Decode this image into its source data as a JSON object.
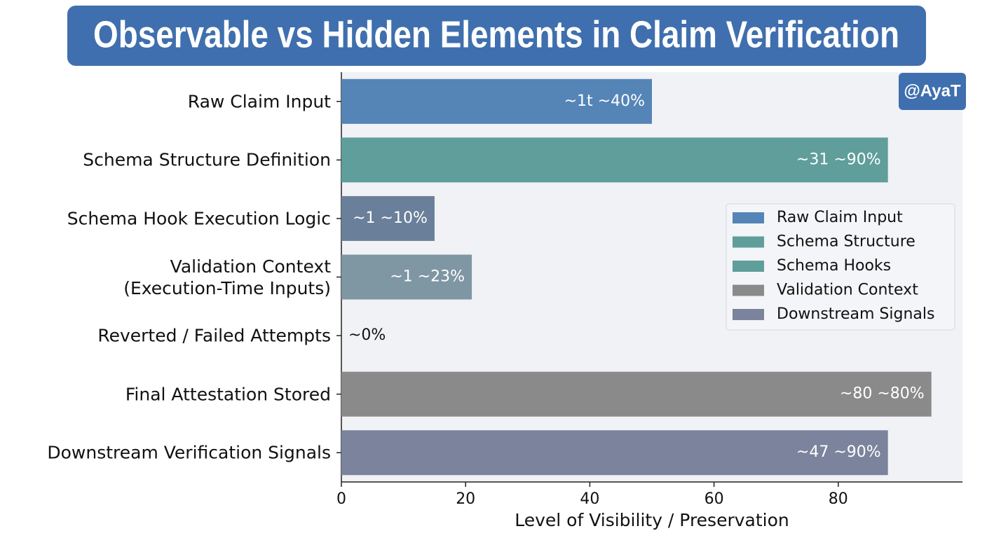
{
  "chart_data": {
    "type": "bar",
    "orientation": "horizontal",
    "title": "Observable vs Hidden Elements in Claim Verification",
    "watermark": "@AyaT",
    "categories": [
      "Raw Claim Input",
      "Schema Structure Definition",
      "Schema Hook Execution Logic",
      "Validation Context\n(Execution-Time Inputs)",
      "Reverted / Failed Attempts",
      "Final Attestation Stored",
      "Downstream Verification Signals"
    ],
    "values": [
      50,
      88,
      15,
      21,
      0,
      95,
      88
    ],
    "colors": [
      "#5585b7",
      "#5f9e9a",
      "#6a7f9a",
      "#7f96a3",
      "#7f96a3",
      "#8a8a8a",
      "#7b849c"
    ],
    "annotations": [
      "~1t ~40%",
      "~31 ~90%",
      "~1 ~10%",
      "~1 ~23%",
      "~0%",
      "~80 ~80%",
      "~47 ~90%"
    ],
    "xlabel": "Level of Visibility / Preservation",
    "xlim": [
      0,
      100
    ],
    "xticks": [
      0,
      20,
      40,
      60,
      80
    ],
    "legend": {
      "position": "right",
      "entries": [
        {
          "name": "Raw Claim Input",
          "color": "#5585b7"
        },
        {
          "name": "Schema Structure",
          "color": "#5f9e9a"
        },
        {
          "name": "Schema Hooks",
          "color": "#5f9e9a"
        },
        {
          "name": "Validation Context",
          "color": "#8a8a8a"
        },
        {
          "name": "Downstream Signals",
          "color": "#7b849c"
        }
      ]
    }
  }
}
